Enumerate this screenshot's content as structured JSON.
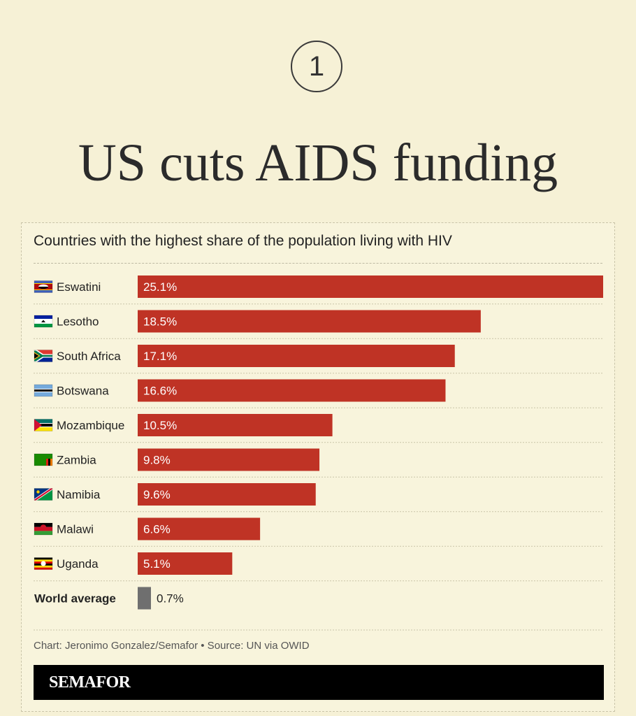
{
  "badge_number": "1",
  "headline": "US cuts AIDS funding",
  "colors": {
    "bar": "#bf3325",
    "average_bar": "#6f6f6f",
    "background": "#f6f1d6"
  },
  "chart_data": {
    "type": "bar",
    "orientation": "horizontal",
    "title": "Countries with the highest share of the population living with HIV",
    "unit": "%",
    "categories": [
      "Eswatini",
      "Lesotho",
      "South Africa",
      "Botswana",
      "Mozambique",
      "Zambia",
      "Namibia",
      "Malawi",
      "Uganda",
      "World average"
    ],
    "values": [
      25.1,
      18.5,
      17.1,
      16.6,
      10.5,
      9.8,
      9.6,
      6.6,
      5.1,
      0.7
    ],
    "labels": [
      "25.1%",
      "18.5%",
      "17.1%",
      "16.6%",
      "10.5%",
      "9.8%",
      "9.6%",
      "6.6%",
      "5.1%",
      "0.7%"
    ],
    "flags": [
      "eswatini-flag-icon",
      "lesotho-flag-icon",
      "south-africa-flag-icon",
      "botswana-flag-icon",
      "mozambique-flag-icon",
      "zambia-flag-icon",
      "namibia-flag-icon",
      "malawi-flag-icon",
      "uganda-flag-icon",
      ""
    ],
    "highlight_last": true,
    "xlim": [
      0,
      25.1
    ]
  },
  "source": "Chart: Jeronimo Gonzalez/Semafor • Source: UN via OWID",
  "brand": "SEMAFOR"
}
